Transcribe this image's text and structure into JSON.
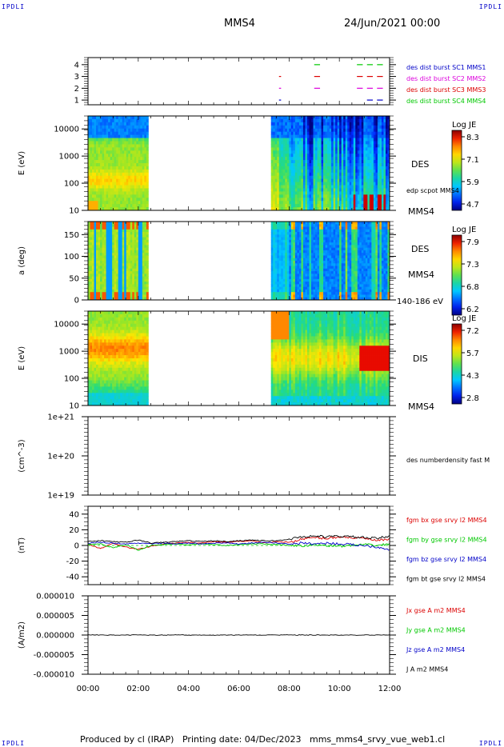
{
  "header": {
    "corner_left": "IPDLI",
    "corner_right": "IPDLI",
    "corner_bottom_left": "IPDLI",
    "corner_bottom_right": "IPDLI",
    "title": "MMS4",
    "datetime": "24/Jun/2021 00:00"
  },
  "footer": {
    "produced_by": "Produced by cl (IRAP)",
    "printing_date": "Printing date: 04/Dec/2023",
    "file": "mms_mms4_srvy_vue_web1.cl"
  },
  "colors": {
    "blue": "#0000c8",
    "magenta": "#dc00dc",
    "red": "#dc0000",
    "green": "#00c800",
    "black": "#000000"
  },
  "chart_data": [
    {
      "id": "burst-availability",
      "type": "scatter",
      "yticks": [
        "1",
        "2",
        "3",
        "4"
      ],
      "ylim": [
        0.6,
        4.6
      ],
      "xlim": [
        0,
        12
      ],
      "legend": [
        {
          "label": "des dist burst SC1 MMS1",
          "color": "#0000c8"
        },
        {
          "label": "des dist burst SC2 MMS2",
          "color": "#dc00dc"
        },
        {
          "label": "des dist burst SC3 MMS3",
          "color": "#dc0000"
        },
        {
          "label": "des dist burst SC4 MMS4",
          "color": "#00c800"
        }
      ],
      "segments": [
        {
          "sc": 4,
          "x0": 9.0,
          "x1": 9.2,
          "color": "#00c800"
        },
        {
          "sc": 4,
          "x0": 10.7,
          "x1": 10.9,
          "color": "#00c800"
        },
        {
          "sc": 4,
          "x0": 11.1,
          "x1": 11.3,
          "color": "#00c800"
        },
        {
          "sc": 4,
          "x0": 11.5,
          "x1": 11.7,
          "color": "#00c800"
        },
        {
          "sc": 3,
          "x0": 7.6,
          "x1": 7.65,
          "color": "#dc0000"
        },
        {
          "sc": 3,
          "x0": 9.0,
          "x1": 9.2,
          "color": "#dc0000"
        },
        {
          "sc": 3,
          "x0": 10.7,
          "x1": 10.9,
          "color": "#dc0000"
        },
        {
          "sc": 3,
          "x0": 11.1,
          "x1": 11.3,
          "color": "#dc0000"
        },
        {
          "sc": 3,
          "x0": 11.5,
          "x1": 11.7,
          "color": "#dc0000"
        },
        {
          "sc": 2,
          "x0": 7.6,
          "x1": 7.65,
          "color": "#dc00dc"
        },
        {
          "sc": 2,
          "x0": 9.0,
          "x1": 9.2,
          "color": "#dc00dc"
        },
        {
          "sc": 2,
          "x0": 10.7,
          "x1": 10.9,
          "color": "#dc00dc"
        },
        {
          "sc": 2,
          "x0": 11.1,
          "x1": 11.3,
          "color": "#dc00dc"
        },
        {
          "sc": 2,
          "x0": 11.5,
          "x1": 11.7,
          "color": "#dc00dc"
        },
        {
          "sc": 1,
          "x0": 7.6,
          "x1": 7.65,
          "color": "#0000c8"
        },
        {
          "sc": 1,
          "x0": 11.1,
          "x1": 11.3,
          "color": "#0000c8"
        },
        {
          "sc": 1,
          "x0": 11.5,
          "x1": 11.7,
          "color": "#0000c8"
        }
      ]
    },
    {
      "id": "des-energy",
      "type": "heatmap",
      "ylabel": "E (eV)",
      "yscale": "log",
      "ylim": [
        10,
        30000
      ],
      "yticks": [
        "10",
        "100",
        "1000",
        "10000"
      ],
      "gaps": [
        [
          2.4,
          7.3
        ]
      ],
      "right_labels": [
        "DES",
        "edp scpot MMS4",
        "MMS4"
      ],
      "colorbar": {
        "title": "Log JE",
        "ticks": [
          "8.3",
          "7.1",
          "5.9",
          "4.7"
        ]
      }
    },
    {
      "id": "des-pitch",
      "type": "heatmap",
      "ylabel": "a (deg)",
      "ylim": [
        0,
        180
      ],
      "yticks": [
        "0",
        "50",
        "100",
        "150"
      ],
      "gaps": [
        [
          2.4,
          7.3
        ]
      ],
      "right_labels": [
        "DES",
        "MMS4",
        "140-186 eV"
      ],
      "colorbar": {
        "title": "Log JE",
        "ticks": [
          "7.9",
          "7.3",
          "6.8",
          "6.2"
        ]
      }
    },
    {
      "id": "dis-energy",
      "type": "heatmap",
      "ylabel": "E (eV)",
      "yscale": "log",
      "ylim": [
        10,
        30000
      ],
      "yticks": [
        "10",
        "100",
        "1000",
        "10000"
      ],
      "gaps": [
        [
          2.4,
          7.3
        ]
      ],
      "right_labels": [
        "DIS",
        "MMS4"
      ],
      "colorbar": {
        "title": "Log JE",
        "ticks": [
          "7.2",
          "5.7",
          "4.3",
          "2.8"
        ]
      }
    },
    {
      "id": "density",
      "type": "line",
      "ylabel": "(cm^-3)",
      "yscale": "log",
      "yticks": [
        "1e+19",
        "1e+20",
        "1e+21"
      ],
      "legend": [
        {
          "label": "des numberdensity fast M",
          "color": "#000000"
        }
      ],
      "series": []
    },
    {
      "id": "fgm",
      "type": "line",
      "ylabel": "(nT)",
      "ylim": [
        -50,
        50
      ],
      "yticks": [
        "-40",
        "-20",
        "0",
        "20",
        "40"
      ],
      "legend": [
        {
          "label": "fgm bx gse srvy l2 MMS4",
          "color": "#dc0000"
        },
        {
          "label": "fgm by gse srvy l2 MMS4",
          "color": "#00c800"
        },
        {
          "label": "fgm bz gse srvy l2 MMS4",
          "color": "#0000c8"
        },
        {
          "label": "fgm bt gse srvy l2 MMS4",
          "color": "#000000"
        }
      ],
      "x": [
        0,
        0.5,
        1,
        1.5,
        2,
        2.5,
        3,
        3.5,
        4,
        4.5,
        5,
        5.5,
        6,
        6.5,
        7,
        7.5,
        8,
        8.5,
        9,
        9.5,
        10,
        10.5,
        11,
        11.5,
        12
      ],
      "series": [
        {
          "name": "fgm bx gse srvy l2 MMS4",
          "color": "#dc0000",
          "values": [
            2,
            -4,
            3,
            -2,
            -5,
            -1,
            2,
            3,
            4,
            3,
            5,
            4,
            5,
            6,
            3,
            5,
            4,
            8,
            10,
            9,
            11,
            10,
            9,
            6,
            8
          ]
        },
        {
          "name": "fgm by gse srvy l2 MMS4",
          "color": "#00c800",
          "values": [
            1,
            2,
            -3,
            1,
            -6,
            0,
            1,
            2,
            1,
            2,
            1,
            0,
            1,
            2,
            2,
            1,
            0,
            -1,
            1,
            0,
            -1,
            0,
            1,
            0,
            2
          ]
        },
        {
          "name": "fgm bz gse srvy l2 MMS4",
          "color": "#0000c8",
          "values": [
            3,
            4,
            3,
            2,
            3,
            2,
            3,
            2,
            3,
            2,
            3,
            3,
            2,
            3,
            4,
            3,
            2,
            3,
            2,
            3,
            2,
            1,
            0,
            -2,
            -5
          ]
        },
        {
          "name": "fgm bt gse srvy l2 MMS4",
          "color": "#000000",
          "values": [
            5,
            6,
            5,
            4,
            7,
            3,
            4,
            5,
            6,
            5,
            6,
            5,
            6,
            7,
            6,
            6,
            8,
            11,
            12,
            11,
            12,
            11,
            10,
            9,
            12
          ]
        }
      ]
    },
    {
      "id": "current",
      "type": "line",
      "ylabel": "(A/m2)",
      "ylim": [
        -1e-05,
        1e-05
      ],
      "yticks": [
        "0.000010",
        "0.000005",
        "0.000000",
        "-0.000005",
        "-0.000010"
      ],
      "legend": [
        {
          "label": "Jx gse A m2 MMS4",
          "color": "#dc0000"
        },
        {
          "label": "Jy gse A m2 MMS4",
          "color": "#00c800"
        },
        {
          "label": "Jz gse A m2 MMS4",
          "color": "#0000c8"
        },
        {
          "label": "J A m2 MMS4",
          "color": "#000000"
        }
      ],
      "x": [
        0,
        12
      ],
      "series": [
        {
          "name": "J A m2 MMS4",
          "color": "#000000",
          "values": [
            0,
            0
          ]
        }
      ]
    }
  ],
  "xaxis": {
    "xlim": [
      0,
      12
    ],
    "ticks": [
      "00:00",
      "02:00",
      "04:00",
      "06:00",
      "08:00",
      "10:00",
      "12:00"
    ]
  }
}
